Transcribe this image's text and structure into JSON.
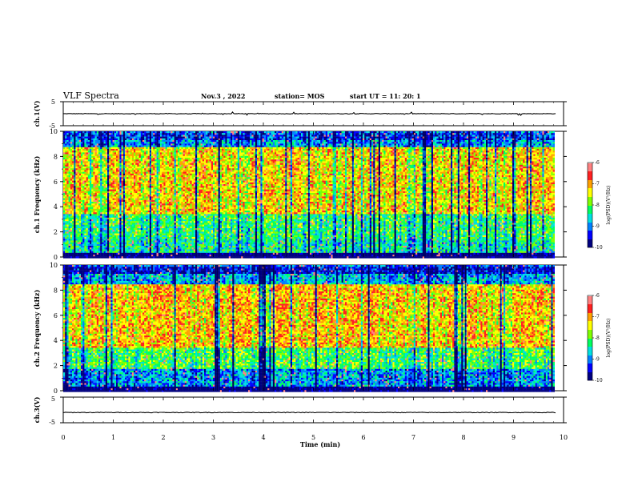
{
  "header": {
    "title": "VLF Spectra",
    "date": "Nov.3 , 2022",
    "station": "station= MOS",
    "start": "start UT = 11: 20: 1"
  },
  "colors": {
    "spectrum_scale": [
      "#000080",
      "#0000ff",
      "#0080ff",
      "#00e0e0",
      "#00ff60",
      "#80ff00",
      "#ffff00",
      "#ffa000",
      "#ff2020",
      "#ff8080",
      "#ffffff"
    ],
    "trace": "#000000"
  },
  "chart_data": [
    {
      "type": "line",
      "name": "ch.1",
      "ylabel": "ch.1(V)",
      "ylim": [
        -5,
        5
      ],
      "yticks": [
        "5",
        "-5"
      ],
      "xlim": [
        0,
        10
      ],
      "x": [
        0,
        10
      ],
      "y": [
        0,
        0
      ],
      "description_visible": "flat trace near 0 V with small spikes"
    },
    {
      "type": "heatmap",
      "name": "ch.1 spectrogram",
      "ylabel": "ch.1 Frequency (kHz)",
      "ylim": [
        0,
        10
      ],
      "yticks": [
        "0",
        "2",
        "4",
        "6",
        "8",
        "10"
      ],
      "xlim": [
        0,
        9.85
      ],
      "colorbar": {
        "label": "log(PSD)(V²/Hz)",
        "range": [
          -10,
          -6
        ],
        "ticks": [
          "-6",
          "-7",
          "-8",
          "-9",
          "-10"
        ]
      },
      "bands_log_psd": [
        {
          "freq_range_khz": [
            0,
            0.4
          ],
          "level": -10
        },
        {
          "freq_range_khz": [
            0.4,
            1.5
          ],
          "level": -8.3
        },
        {
          "freq_range_khz": [
            1.5,
            3.5
          ],
          "level": -8.1
        },
        {
          "freq_range_khz": [
            3.5,
            8.8
          ],
          "level": -7.2
        },
        {
          "freq_range_khz": [
            8.8,
            9.3
          ],
          "level": -8.8
        },
        {
          "freq_range_khz": [
            9.3,
            10
          ],
          "level": -9.2
        }
      ]
    },
    {
      "type": "heatmap",
      "name": "ch.2 spectrogram",
      "ylabel": "ch.2 Frequency (kHz)",
      "ylim": [
        0,
        10
      ],
      "yticks": [
        "0",
        "2",
        "4",
        "6",
        "8",
        "10"
      ],
      "xlim": [
        0,
        9.85
      ],
      "colorbar": {
        "label": "log(PSD)(V²/Hz)",
        "range": [
          -10,
          -6
        ],
        "ticks": [
          "-6",
          "-7",
          "-8",
          "-9",
          "-10"
        ]
      },
      "bands_log_psd": [
        {
          "freq_range_khz": [
            0,
            0.4
          ],
          "level": -10
        },
        {
          "freq_range_khz": [
            0.4,
            1.8
          ],
          "level": -8.8
        },
        {
          "freq_range_khz": [
            1.8,
            3.5
          ],
          "level": -8.0
        },
        {
          "freq_range_khz": [
            3.5,
            8.5
          ],
          "level": -7.1
        },
        {
          "freq_range_khz": [
            8.5,
            9.4
          ],
          "level": -8.7
        },
        {
          "freq_range_khz": [
            9.4,
            10
          ],
          "level": -9.4
        }
      ]
    },
    {
      "type": "line",
      "name": "ch.3",
      "ylabel": "ch.3(V)",
      "ylim": [
        -5,
        5
      ],
      "yticks": [
        "5",
        "-5"
      ],
      "xlim": [
        0,
        10
      ],
      "x": [
        0,
        10
      ],
      "y": [
        -1,
        -1
      ]
    }
  ],
  "xaxis": {
    "label": "Time (min)",
    "range": [
      0,
      10
    ],
    "ticks": [
      "0",
      "1",
      "2",
      "3",
      "4",
      "5",
      "6",
      "7",
      "8",
      "9",
      "10"
    ]
  }
}
